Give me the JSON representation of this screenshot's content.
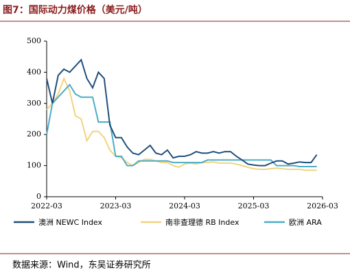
{
  "chart_data": {
    "type": "line",
    "title": "图7：国际动力煤价格（美元/吨）",
    "source": "数据来源：Wind，东吴证券研究所",
    "x": [
      "2022-03",
      "2022-04",
      "2022-05",
      "2022-06",
      "2022-07",
      "2022-08",
      "2022-09",
      "2022-10",
      "2022-11",
      "2022-12",
      "2023-01",
      "2023-02",
      "2023-03",
      "2023-04",
      "2023-05",
      "2023-06",
      "2023-07",
      "2023-08",
      "2023-09",
      "2023-10",
      "2023-11",
      "2023-12",
      "2024-01",
      "2024-02",
      "2024-03",
      "2024-04",
      "2024-05",
      "2024-06",
      "2024-07",
      "2024-08",
      "2024-09",
      "2024-10",
      "2024-11",
      "2024-12",
      "2025-01",
      "2025-02",
      "2025-03",
      "2025-04",
      "2025-05",
      "2025-06",
      "2025-07",
      "2025-08",
      "2025-09",
      "2025-10",
      "2025-11",
      "2025-12",
      "2026-01",
      "2026-02"
    ],
    "xlim": [
      "2022-03",
      "2026-03"
    ],
    "xticks": [
      "2022-03",
      "2023-03",
      "2024-03",
      "2025-03",
      "2026-03"
    ],
    "ylim": [
      0,
      500
    ],
    "yticks": [
      0,
      100,
      200,
      300,
      400,
      500
    ],
    "series": [
      {
        "name": "澳洲 NEWC Index",
        "color": "#1f4e79",
        "values": [
          380,
          300,
          390,
          410,
          400,
          420,
          440,
          380,
          350,
          400,
          380,
          230,
          190,
          190,
          160,
          140,
          135,
          150,
          165,
          140,
          135,
          150,
          125,
          130,
          130,
          135,
          145,
          140,
          140,
          145,
          140,
          145,
          145,
          130,
          118,
          105,
          102,
          100,
          100,
          108,
          115,
          115,
          105,
          108,
          112,
          110,
          110,
          135
        ]
      },
      {
        "name": "南非查理德 RB Index",
        "color": "#f2d37f",
        "values": [
          280,
          300,
          330,
          380,
          340,
          260,
          250,
          180,
          210,
          210,
          190,
          150,
          130,
          125,
          110,
          100,
          110,
          120,
          120,
          115,
          110,
          110,
          100,
          95,
          105,
          108,
          105,
          110,
          110,
          112,
          108,
          108,
          108,
          105,
          100,
          95,
          90,
          88,
          88,
          90,
          92,
          90,
          88,
          88,
          88,
          85,
          85,
          85
        ]
      },
      {
        "name": "欧洲 ARA",
        "color": "#4bacc6",
        "values": [
          200,
          300,
          320,
          340,
          360,
          330,
          320,
          320,
          320,
          240,
          240,
          240,
          130,
          130,
          100,
          100,
          115,
          115,
          115,
          115,
          115,
          115,
          110,
          110,
          110,
          110,
          110,
          110,
          118,
          118,
          118,
          118,
          118,
          118,
          118,
          118,
          118,
          118,
          118,
          118,
          100,
          100,
          100,
          100,
          97,
          97,
          97,
          97
        ]
      }
    ]
  }
}
